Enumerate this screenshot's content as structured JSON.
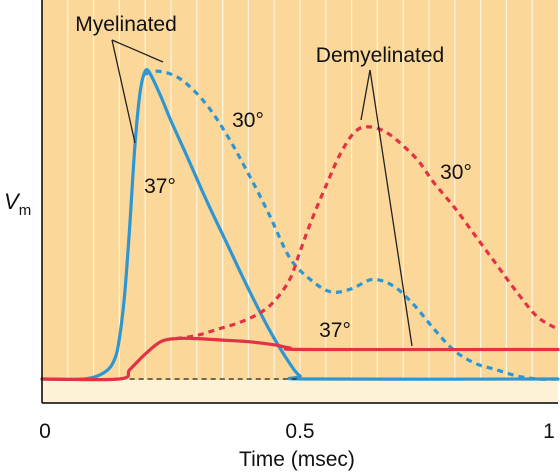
{
  "chart_data": {
    "type": "line",
    "title": "",
    "xlabel": "Time (msec)",
    "ylabel": "V",
    "ylabel_sub": "m",
    "xlim": [
      0,
      1
    ],
    "x_ticks": [
      "0",
      "0.5",
      "1"
    ],
    "grid": "vertical",
    "colors": {
      "background": "#fbd89a",
      "baseline_band": "#fdf1d6",
      "myelinated": "#2e96d2",
      "demyelinated": "#e23246",
      "axes": "#000000"
    },
    "annotations": {
      "myelinated": "Myelinated",
      "demyelinated": "Demyelinated",
      "myelinated_30": "30°",
      "myelinated_37": "37°",
      "demyelinated_30": "30°",
      "demyelinated_37": "37°"
    },
    "series": [
      {
        "color": "#2e96d2",
        "dash": "solid",
        "x": [
          0,
          0.08,
          0.12,
          0.14,
          0.15,
          0.16,
          0.17,
          0.18,
          0.19,
          0.2,
          0.21,
          0.23,
          0.25,
          0.28,
          0.32,
          0.36,
          0.4,
          0.44,
          0.48,
          0.5,
          0.52,
          1.0
        ],
        "y": [
          0,
          0,
          0.02,
          0.06,
          0.13,
          0.27,
          0.49,
          0.75,
          0.92,
          0.99,
          0.98,
          0.91,
          0.83,
          0.72,
          0.57,
          0.43,
          0.29,
          0.16,
          0.05,
          0.01,
          0,
          0
        ]
      },
      {
        "color": "#2e96d2",
        "dash": "dashed",
        "x": [
          0.2,
          0.22,
          0.25,
          0.28,
          0.32,
          0.36,
          0.4,
          0.44,
          0.48,
          0.52,
          0.56,
          0.6,
          0.64,
          0.68,
          0.72,
          0.76,
          0.8,
          0.84,
          0.88,
          0.92,
          0.96,
          1.0
        ],
        "y": [
          0.98,
          0.99,
          0.98,
          0.95,
          0.88,
          0.78,
          0.66,
          0.53,
          0.39,
          0.32,
          0.28,
          0.29,
          0.32,
          0.3,
          0.24,
          0.16,
          0.09,
          0.05,
          0.03,
          0.01,
          0,
          0
        ]
      },
      {
        "color": "#e23246",
        "dash": "solid",
        "x": [
          0,
          0.15,
          0.17,
          0.2,
          0.23,
          0.26,
          0.3,
          0.35,
          0.4,
          0.45,
          0.48,
          0.52,
          1.0
        ],
        "y": [
          0,
          0,
          0.03,
          0.08,
          0.12,
          0.13,
          0.13,
          0.125,
          0.12,
          0.11,
          0.1,
          0.095,
          0.095
        ]
      },
      {
        "color": "#e23246",
        "dash": "dashed",
        "x": [
          0.26,
          0.3,
          0.34,
          0.38,
          0.42,
          0.45,
          0.48,
          0.5,
          0.52,
          0.55,
          0.58,
          0.61,
          0.64,
          0.67,
          0.7,
          0.73,
          0.76,
          0.8,
          0.84,
          0.88,
          0.92,
          0.96,
          1.0
        ],
        "y": [
          0.13,
          0.14,
          0.16,
          0.18,
          0.21,
          0.25,
          0.32,
          0.41,
          0.5,
          0.62,
          0.73,
          0.8,
          0.81,
          0.79,
          0.75,
          0.7,
          0.63,
          0.55,
          0.46,
          0.37,
          0.28,
          0.2,
          0.16
        ]
      },
      {
        "color": "#222222",
        "dash": "dashed",
        "x": [
          0.17,
          0.5
        ],
        "y": [
          0,
          0
        ]
      }
    ]
  }
}
